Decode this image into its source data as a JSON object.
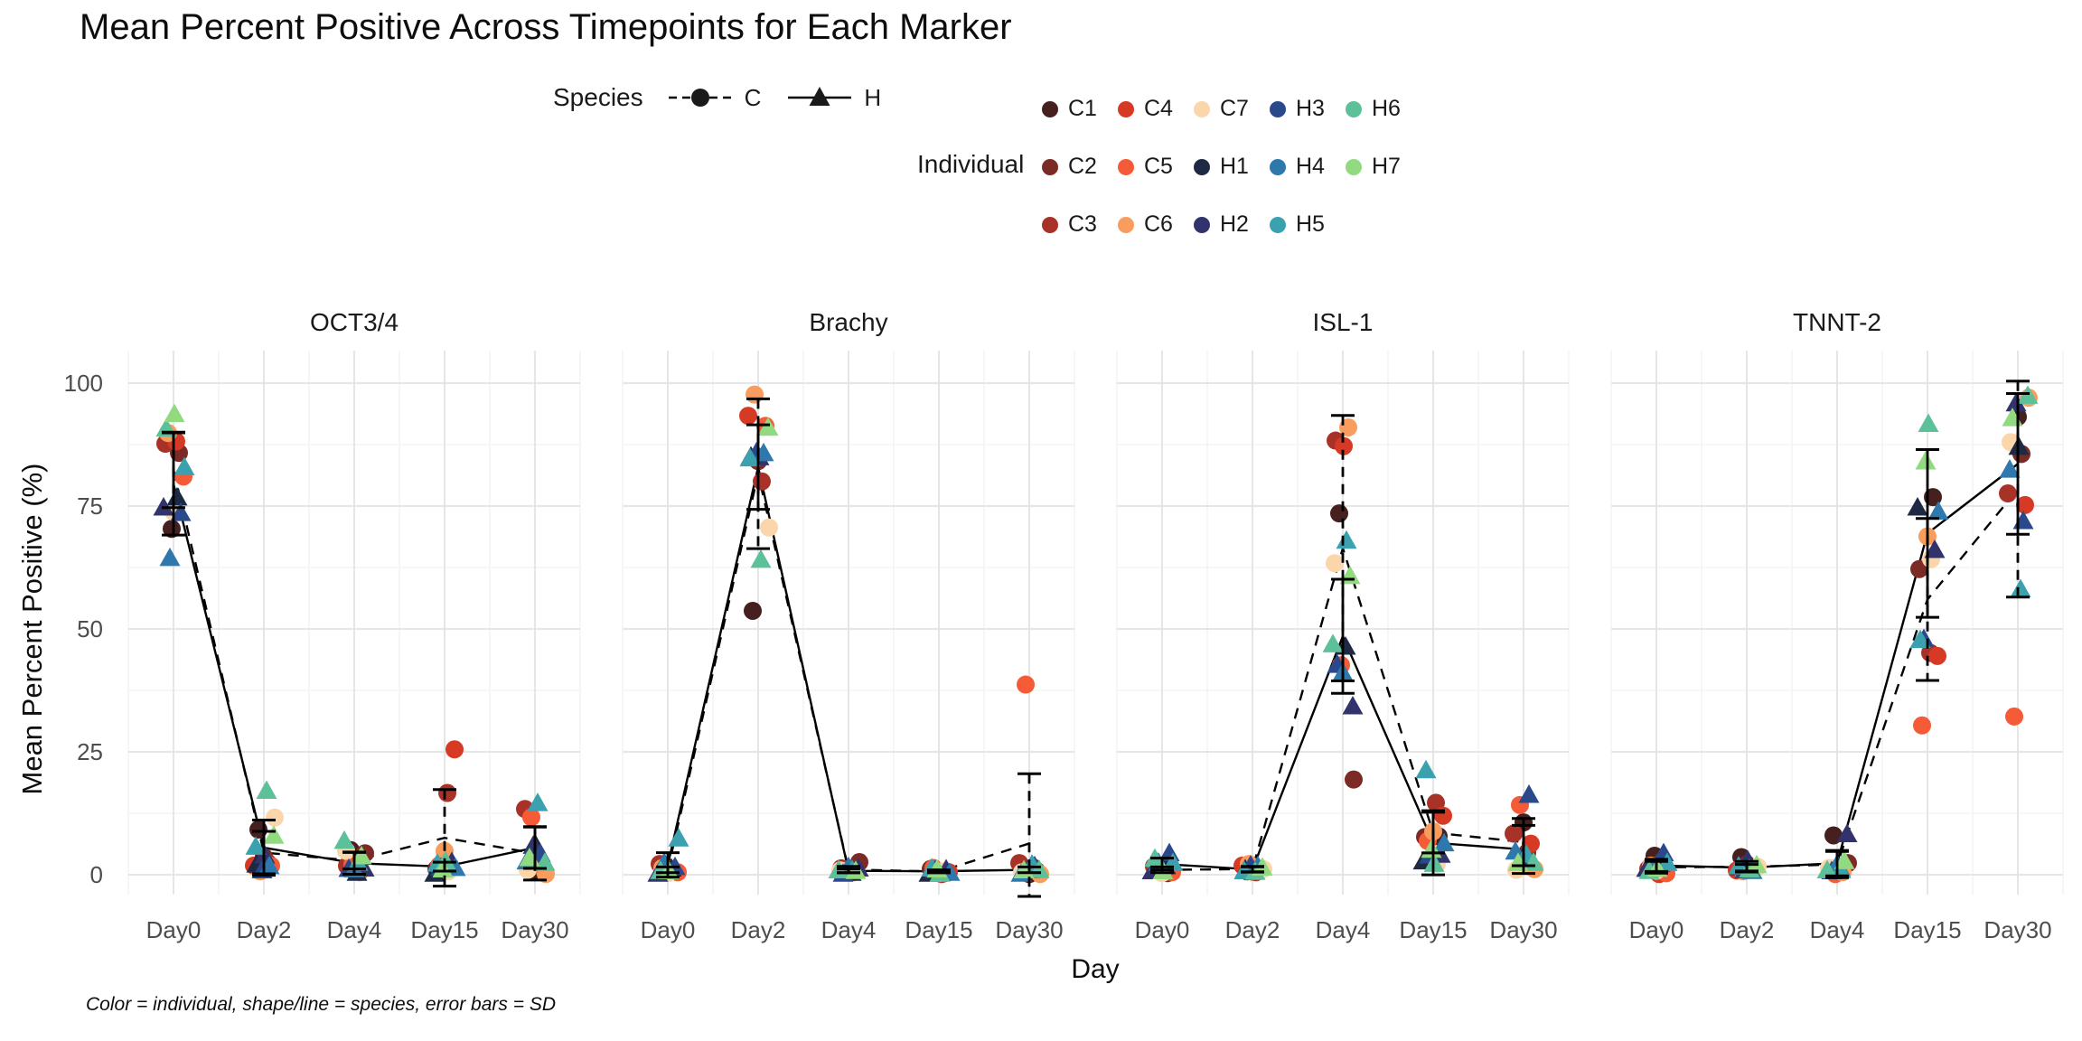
{
  "title": "Mean Percent Positive Across Timepoints for Each Marker",
  "caption": "Color = individual, shape/line = species, error bars = SD",
  "legend": {
    "species": {
      "label": "Species",
      "items": [
        {
          "id": "C",
          "shape": "circle",
          "linetype": "dashed"
        },
        {
          "id": "H",
          "shape": "triangle",
          "linetype": "solid"
        }
      ]
    },
    "individual": {
      "label": "Individual",
      "items": [
        {
          "id": "C1",
          "color": "#461f1f"
        },
        {
          "id": "C2",
          "color": "#7c2a25"
        },
        {
          "id": "C3",
          "color": "#a93228"
        },
        {
          "id": "C4",
          "color": "#d63a25"
        },
        {
          "id": "C5",
          "color": "#f65b37"
        },
        {
          "id": "C6",
          "color": "#f89d5e"
        },
        {
          "id": "C7",
          "color": "#fbd6ab"
        },
        {
          "id": "H1",
          "color": "#1e2a44"
        },
        {
          "id": "H2",
          "color": "#32336c"
        },
        {
          "id": "H3",
          "color": "#29498c"
        },
        {
          "id": "H4",
          "color": "#2e78ad"
        },
        {
          "id": "H5",
          "color": "#3ba1ae"
        },
        {
          "id": "H6",
          "color": "#5cc199"
        },
        {
          "id": "H7",
          "color": "#91da7f"
        }
      ]
    }
  },
  "chart_data": {
    "type": "scatter",
    "facets": [
      "OCT3/4",
      "Brachy",
      "ISL-1",
      "TNNT-2"
    ],
    "categories": [
      "Day0",
      "Day2",
      "Day4",
      "Day15",
      "Day30"
    ],
    "xlabel": "Day",
    "ylabel": "Mean Percent Positive (%)",
    "ylim": [
      0,
      100
    ],
    "yticks": [
      0,
      25,
      50,
      75,
      100
    ],
    "grid": "major and minor, light gray on white",
    "legend_position": "top",
    "notes": "Lines connect per-species daily means; error bars are ±1 SD of the 7 individuals per species. C species = circles + dashed line, H species = triangles + solid line.",
    "individuals": [
      {
        "id": "C1",
        "species": "C",
        "color": "#461f1f"
      },
      {
        "id": "C2",
        "species": "C",
        "color": "#7c2a25"
      },
      {
        "id": "C3",
        "species": "C",
        "color": "#a93228"
      },
      {
        "id": "C4",
        "species": "C",
        "color": "#d63a25"
      },
      {
        "id": "C5",
        "species": "C",
        "color": "#f65b37"
      },
      {
        "id": "C6",
        "species": "C",
        "color": "#f89d5e"
      },
      {
        "id": "C7",
        "species": "C",
        "color": "#fbd6ab"
      },
      {
        "id": "H1",
        "species": "H",
        "color": "#1e2a44"
      },
      {
        "id": "H2",
        "species": "H",
        "color": "#32336c"
      },
      {
        "id": "H3",
        "species": "H",
        "color": "#29498c"
      },
      {
        "id": "H4",
        "species": "H",
        "color": "#2e78ad"
      },
      {
        "id": "H5",
        "species": "H",
        "color": "#3ba1ae"
      },
      {
        "id": "H6",
        "species": "H",
        "color": "#5cc199"
      },
      {
        "id": "H7",
        "species": "H",
        "color": "#91da7f"
      }
    ],
    "values": {
      "OCT3/4": {
        "C1": [
          70,
          9,
          5,
          2,
          1
        ],
        "C2": [
          86,
          4,
          4,
          1,
          2
        ],
        "C3": [
          87.5,
          2.5,
          2,
          17,
          13
        ],
        "C4": [
          88.5,
          1.5,
          1.5,
          25.5,
          1.5
        ],
        "C5": [
          81,
          2,
          2.5,
          1.5,
          11.5
        ],
        "C6": [
          89.5,
          0.5,
          0.5,
          5,
          0.5
        ],
        "C7": [
          74,
          12,
          4.5,
          0.5,
          1
        ],
        "H1": [
          76.5,
          2,
          0.5,
          0.5,
          5.5
        ],
        "H2": [
          75,
          3.5,
          1,
          2.5,
          6
        ],
        "H3": [
          73.5,
          1,
          1.5,
          1,
          4
        ],
        "H4": [
          64,
          1.5,
          1,
          1.5,
          3
        ],
        "H5": [
          83,
          6,
          2,
          2,
          14.5
        ],
        "H6": [
          90.5,
          17,
          7,
          3,
          2
        ],
        "H7": [
          94,
          7.5,
          3.5,
          1,
          3.5
        ]
      },
      "Brachy": {
        "C1": [
          0.5,
          53.5,
          1,
          0.5,
          0.5
        ],
        "C2": [
          1,
          84.5,
          2.2,
          1,
          1.5
        ],
        "C3": [
          2,
          80,
          1.5,
          0.5,
          2
        ],
        "C4": [
          1.5,
          93,
          0.5,
          0.5,
          1
        ],
        "C5": [
          0.5,
          91.5,
          1.2,
          1,
          38.5
        ],
        "C6": [
          1,
          97.5,
          0.5,
          0.5,
          0.5
        ],
        "C7": [
          0.5,
          71,
          0.5,
          0.5,
          0.5
        ],
        "H1": [
          1,
          85,
          0.5,
          0.5,
          0.5
        ],
        "H2": [
          0.5,
          84.5,
          1,
          1,
          1
        ],
        "H3": [
          1.5,
          86,
          0.5,
          0.5,
          1.5
        ],
        "H4": [
          2,
          85.5,
          1.5,
          0.5,
          0.5
        ],
        "H5": [
          7.5,
          85,
          0.5,
          1,
          2
        ],
        "H6": [
          0.5,
          64,
          1,
          0.5,
          0.5
        ],
        "H7": [
          1,
          90.5,
          0.5,
          1,
          1
        ]
      },
      "ISL-1": {
        "C1": [
          1,
          0.5,
          73.5,
          8,
          11
        ],
        "C2": [
          0.5,
          1,
          19,
          7.5,
          4.5
        ],
        "C3": [
          1.5,
          0.5,
          88.5,
          15,
          8
        ],
        "C4": [
          2,
          1.5,
          87,
          12,
          6.5
        ],
        "C5": [
          0.5,
          1,
          43,
          6.5,
          14
        ],
        "C6": [
          1,
          2,
          91,
          9,
          1.5
        ],
        "C7": [
          0.5,
          1.5,
          63,
          2,
          1
        ],
        "H1": [
          1.5,
          1,
          46.5,
          3,
          3.5
        ],
        "H2": [
          1,
          0.5,
          34,
          4,
          3
        ],
        "H3": [
          4.3,
          2,
          43,
          3.5,
          16
        ],
        "H4": [
          2,
          1.5,
          41,
          6.5,
          5
        ],
        "H5": [
          2.5,
          1,
          67.5,
          21,
          4
        ],
        "H6": [
          3,
          0.5,
          47,
          2.5,
          2
        ],
        "H7": [
          1,
          1,
          60.5,
          5,
          2.5
        ]
      },
      "TNNT-2": {
        "C1": [
          3.5,
          3.4,
          8,
          77,
          93.5
        ],
        "C2": [
          2.8,
          2.5,
          2,
          62,
          85.6
        ],
        "C3": [
          1,
          1,
          1.5,
          45.5,
          77.2
        ],
        "C4": [
          0.5,
          0.5,
          1,
          44.5,
          75.4
        ],
        "C5": [
          0.3,
          1.5,
          0.5,
          30,
          32
        ],
        "C6": [
          1.5,
          0.5,
          0.5,
          69,
          97.4
        ],
        "C7": [
          1,
          2,
          1,
          64,
          88
        ],
        "H1": [
          2,
          1.5,
          1.5,
          75,
          86.6
        ],
        "H2": [
          1.5,
          2.5,
          8,
          66,
          96
        ],
        "H3": [
          4.3,
          1,
          1,
          47.5,
          71.7
        ],
        "H4": [
          1,
          0.5,
          2,
          74,
          82.7
        ],
        "H5": [
          2.5,
          2,
          0.5,
          47.5,
          58
        ],
        "H6": [
          0.5,
          1,
          1,
          92,
          97
        ],
        "H7": [
          1.5,
          1.5,
          2.5,
          84,
          93
        ]
      }
    }
  }
}
